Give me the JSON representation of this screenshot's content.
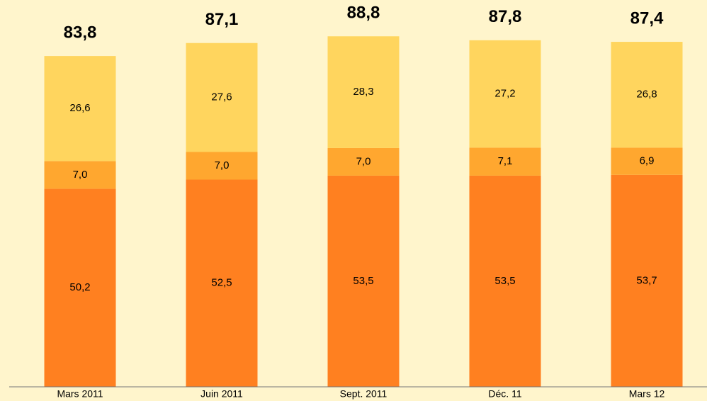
{
  "chart_data": {
    "type": "stacked_bar",
    "categories": [
      "Mars 2011",
      "Juin 2011",
      "Sept. 2011",
      "Déc. 11",
      "Mars 12"
    ],
    "series": [
      {
        "color": "#ff8020",
        "values": [
          50.2,
          52.5,
          53.5,
          53.5,
          53.7
        ],
        "value_labels": [
          "50,2",
          "52,5",
          "53,5",
          "53,5",
          "53,7"
        ]
      },
      {
        "color": "#ffa72f",
        "values": [
          7.0,
          7.0,
          7.0,
          7.1,
          6.9
        ],
        "value_labels": [
          "7,0",
          "7,0",
          "7,0",
          "7,1",
          "6,9"
        ]
      },
      {
        "color": "#ffd55e",
        "values": [
          26.6,
          27.6,
          28.3,
          27.2,
          26.8
        ],
        "value_labels": [
          "26,6",
          "27,6",
          "28,3",
          "27,2",
          "26,8"
        ]
      }
    ],
    "totals": [
      83.8,
      87.1,
      88.8,
      87.8,
      87.4
    ],
    "total_labels": [
      "83,8",
      "87,1",
      "88,8",
      "87,8",
      "87,4"
    ],
    "ylim": [
      0,
      98
    ]
  }
}
